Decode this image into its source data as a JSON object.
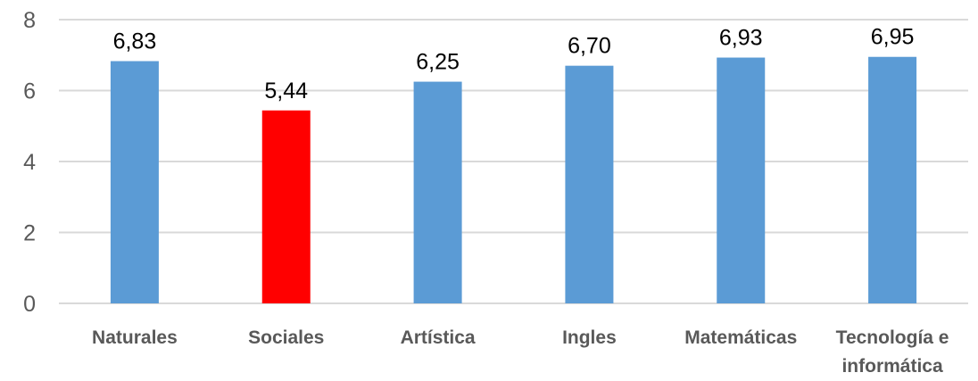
{
  "chart_data": {
    "type": "bar",
    "categories": [
      "Naturales",
      "Sociales",
      "Artística",
      "Ingles",
      "Matemáticas",
      "Tecnología e informática"
    ],
    "values": [
      6.83,
      5.44,
      6.25,
      6.7,
      6.93,
      6.95
    ],
    "value_labels": [
      "6,83",
      "5,44",
      "6,25",
      "6,70",
      "6,93",
      "6,95"
    ],
    "ylim": [
      0,
      8
    ],
    "yticks": [
      0,
      2,
      4,
      6,
      8
    ],
    "grid": true,
    "legend": "none",
    "colors": {
      "bar": "#5b9bd5",
      "highlight": "#ff0000",
      "grid": "#d9d9d9",
      "tick_text": "#595959",
      "label_text": "#000000"
    },
    "highlight_index": 1
  }
}
